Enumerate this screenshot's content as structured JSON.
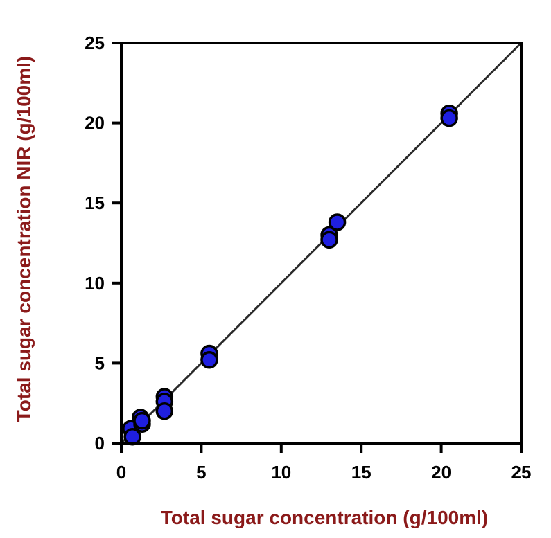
{
  "colors": {
    "axis_title": "#8b1a1a",
    "point_fill": "#1f1fe0",
    "point_stroke": "#000000",
    "fit_line": "#2a2a2a",
    "frame": "#000000"
  },
  "chart_data": {
    "type": "scatter",
    "xlabel": "Total sugar concentration (g/100ml)",
    "ylabel": "Total sugar concentration NIR (g/100ml)",
    "xlim": [
      0,
      25
    ],
    "ylim": [
      0,
      25
    ],
    "xticks": [
      "0",
      "5",
      "10",
      "15",
      "20",
      "25"
    ],
    "yticks": [
      "0",
      "5",
      "10",
      "15",
      "20",
      "25"
    ],
    "grid": false,
    "fit_line": {
      "from": [
        0,
        0
      ],
      "to": [
        25,
        25
      ]
    },
    "points": [
      {
        "x": 0.6,
        "y": 0.9
      },
      {
        "x": 0.7,
        "y": 0.4
      },
      {
        "x": 1.2,
        "y": 1.6
      },
      {
        "x": 1.3,
        "y": 1.2
      },
      {
        "x": 1.3,
        "y": 1.4
      },
      {
        "x": 2.7,
        "y": 2.9
      },
      {
        "x": 2.7,
        "y": 2.6
      },
      {
        "x": 2.7,
        "y": 2.0
      },
      {
        "x": 5.5,
        "y": 5.6
      },
      {
        "x": 5.5,
        "y": 5.2
      },
      {
        "x": 13.0,
        "y": 13.0
      },
      {
        "x": 13.0,
        "y": 12.7
      },
      {
        "x": 13.5,
        "y": 13.8
      },
      {
        "x": 20.5,
        "y": 20.6
      },
      {
        "x": 20.5,
        "y": 20.3
      }
    ]
  }
}
